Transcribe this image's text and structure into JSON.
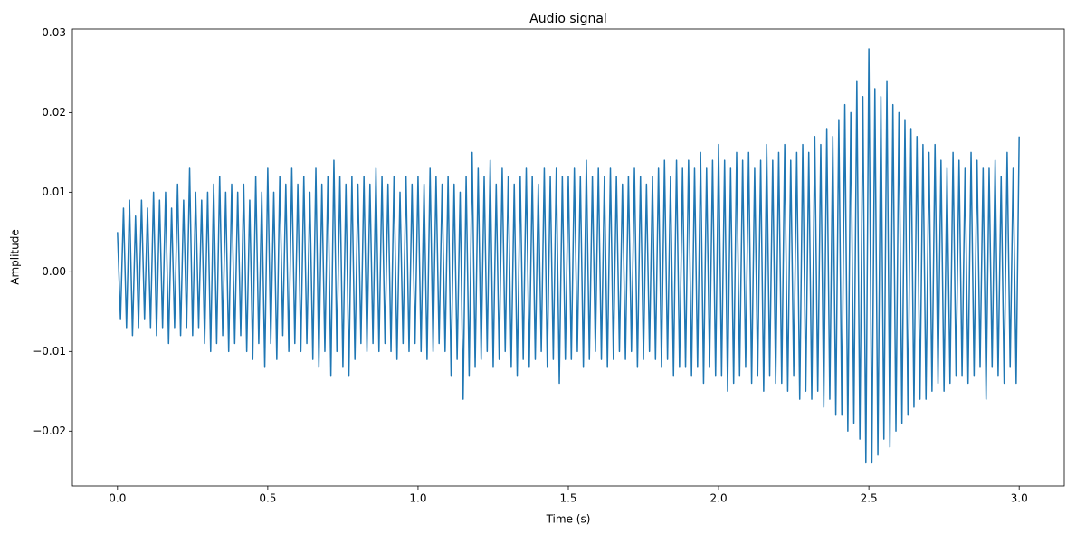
{
  "chart_data": {
    "type": "line",
    "title": "Audio signal",
    "x_label": "Time (s)",
    "y_label": "Amplitude",
    "color": "#1f77b4",
    "xlim": [
      -0.15,
      3.15
    ],
    "ylim": [
      -0.0269,
      0.0305
    ],
    "xticks": [
      {
        "value": 0,
        "label": "0.0"
      },
      0.5,
      {
        "value": 1,
        "label": "1.0"
      },
      1.5,
      {
        "value": 2,
        "label": "2.0"
      },
      2.5,
      {
        "value": 3,
        "label": "3.0"
      }
    ],
    "yticks": [
      {
        "value": -0.02,
        "label": "−0.02"
      },
      {
        "value": -0.01,
        "label": "−0.01"
      },
      {
        "value": 0,
        "label": "0.00"
      },
      0.01,
      0.02,
      0.03
    ],
    "x": [
      0,
      0.01,
      0.02,
      0.03,
      0.04,
      0.05,
      0.06,
      0.07,
      0.08,
      0.09,
      0.1,
      0.11,
      0.12,
      0.13,
      0.14,
      0.15,
      0.16,
      0.17,
      0.18,
      0.19,
      0.2,
      0.21,
      0.22,
      0.23,
      0.24,
      0.25,
      0.26,
      0.27,
      0.28,
      0.29,
      0.3,
      0.31,
      0.32,
      0.33,
      0.34,
      0.35,
      0.36,
      0.37,
      0.38,
      0.39,
      0.4,
      0.41,
      0.42,
      0.43,
      0.44,
      0.45,
      0.46,
      0.47,
      0.48,
      0.49,
      0.5,
      0.51,
      0.52,
      0.53,
      0.54,
      0.55,
      0.56,
      0.57,
      0.58,
      0.59,
      0.6,
      0.61,
      0.62,
      0.63,
      0.64,
      0.65,
      0.66,
      0.67,
      0.68,
      0.69,
      0.7,
      0.71,
      0.72,
      0.73,
      0.74,
      0.75,
      0.76,
      0.77,
      0.78,
      0.79,
      0.8,
      0.81,
      0.82,
      0.83,
      0.84,
      0.85,
      0.86,
      0.87,
      0.88,
      0.89,
      0.9,
      0.91,
      0.92,
      0.93,
      0.94,
      0.95,
      0.96,
      0.97,
      0.98,
      0.99,
      1,
      1.01,
      1.02,
      1.03,
      1.04,
      1.05,
      1.06,
      1.07,
      1.08,
      1.09,
      1.1,
      1.11,
      1.12,
      1.13,
      1.14,
      1.15,
      1.16,
      1.17,
      1.18,
      1.19,
      1.2,
      1.21,
      1.22,
      1.23,
      1.24,
      1.25,
      1.26,
      1.27,
      1.28,
      1.29,
      1.3,
      1.31,
      1.32,
      1.33,
      1.34,
      1.35,
      1.36,
      1.37,
      1.38,
      1.39,
      1.4,
      1.41,
      1.42,
      1.43,
      1.44,
      1.45,
      1.46,
      1.47,
      1.48,
      1.49,
      1.5,
      1.51,
      1.52,
      1.53,
      1.54,
      1.55,
      1.56,
      1.57,
      1.58,
      1.59,
      1.6,
      1.61,
      1.62,
      1.63,
      1.64,
      1.65,
      1.66,
      1.67,
      1.68,
      1.69,
      1.7,
      1.71,
      1.72,
      1.73,
      1.74,
      1.75,
      1.76,
      1.77,
      1.78,
      1.79,
      1.8,
      1.81,
      1.82,
      1.83,
      1.84,
      1.85,
      1.86,
      1.87,
      1.88,
      1.89,
      1.9,
      1.91,
      1.92,
      1.93,
      1.94,
      1.95,
      1.96,
      1.97,
      1.98,
      1.99,
      2,
      2.01,
      2.02,
      2.03,
      2.04,
      2.05,
      2.06,
      2.07,
      2.08,
      2.09,
      2.1,
      2.11,
      2.12,
      2.13,
      2.14,
      2.15,
      2.16,
      2.17,
      2.18,
      2.19,
      2.2,
      2.21,
      2.22,
      2.23,
      2.24,
      2.25,
      2.26,
      2.27,
      2.28,
      2.29,
      2.3,
      2.31,
      2.32,
      2.33,
      2.34,
      2.35,
      2.36,
      2.37,
      2.38,
      2.39,
      2.4,
      2.41,
      2.42,
      2.43,
      2.44,
      2.45,
      2.46,
      2.47,
      2.48,
      2.49,
      2.5,
      2.51,
      2.52,
      2.53,
      2.54,
      2.55,
      2.56,
      2.57,
      2.58,
      2.59,
      2.6,
      2.61,
      2.62,
      2.63,
      2.64,
      2.65,
      2.66,
      2.67,
      2.68,
      2.69,
      2.7,
      2.71,
      2.72,
      2.73,
      2.74,
      2.75,
      2.76,
      2.77,
      2.78,
      2.79,
      2.8,
      2.81,
      2.82,
      2.83,
      2.84,
      2.85,
      2.86,
      2.87,
      2.88,
      2.89,
      2.9,
      2.91,
      2.92,
      2.93,
      2.94,
      2.95,
      2.96,
      2.97,
      2.98,
      2.99,
      3
    ],
    "values": [
      0.005,
      -0.006,
      0.008,
      -0.007,
      0.009,
      -0.008,
      0.007,
      -0.007,
      0.009,
      -0.006,
      0.008,
      -0.007,
      0.01,
      -0.008,
      0.009,
      -0.007,
      0.01,
      -0.009,
      0.008,
      -0.007,
      0.011,
      -0.008,
      0.009,
      -0.007,
      0.013,
      -0.008,
      0.01,
      -0.007,
      0.009,
      -0.009,
      0.01,
      -0.01,
      0.011,
      -0.009,
      0.012,
      -0.008,
      0.01,
      -0.01,
      0.011,
      -0.009,
      0.01,
      -0.008,
      0.011,
      -0.01,
      0.009,
      -0.011,
      0.012,
      -0.009,
      0.01,
      -0.012,
      0.013,
      -0.009,
      0.01,
      -0.011,
      0.012,
      -0.008,
      0.011,
      -0.01,
      0.013,
      -0.009,
      0.011,
      -0.01,
      0.012,
      -0.009,
      0.01,
      -0.011,
      0.013,
      -0.012,
      0.011,
      -0.01,
      0.012,
      -0.013,
      0.014,
      -0.01,
      0.012,
      -0.012,
      0.011,
      -0.013,
      0.012,
      -0.011,
      0.011,
      -0.009,
      0.012,
      -0.01,
      0.011,
      -0.009,
      0.013,
      -0.01,
      0.012,
      -0.009,
      0.011,
      -0.01,
      0.012,
      -0.011,
      0.01,
      -0.009,
      0.012,
      -0.01,
      0.011,
      -0.009,
      0.012,
      -0.01,
      0.011,
      -0.011,
      0.013,
      -0.01,
      0.012,
      -0.009,
      0.011,
      -0.01,
      0.012,
      -0.013,
      0.011,
      -0.011,
      0.01,
      -0.016,
      0.012,
      -0.013,
      0.015,
      -0.012,
      0.013,
      -0.011,
      0.012,
      -0.01,
      0.014,
      -0.012,
      0.011,
      -0.011,
      0.013,
      -0.01,
      0.012,
      -0.012,
      0.011,
      -0.013,
      0.012,
      -0.011,
      0.013,
      -0.012,
      0.012,
      -0.011,
      0.011,
      -0.01,
      0.013,
      -0.012,
      0.012,
      -0.011,
      0.013,
      -0.014,
      0.012,
      -0.011,
      0.012,
      -0.011,
      0.013,
      -0.01,
      0.012,
      -0.012,
      0.014,
      -0.011,
      0.012,
      -0.01,
      0.013,
      -0.011,
      0.012,
      -0.012,
      0.013,
      -0.011,
      0.012,
      -0.01,
      0.011,
      -0.011,
      0.012,
      -0.01,
      0.013,
      -0.012,
      0.012,
      -0.011,
      0.011,
      -0.01,
      0.012,
      -0.011,
      0.013,
      -0.012,
      0.014,
      -0.011,
      0.012,
      -0.013,
      0.014,
      -0.012,
      0.013,
      -0.012,
      0.014,
      -0.013,
      0.013,
      -0.012,
      0.015,
      -0.014,
      0.013,
      -0.012,
      0.014,
      -0.013,
      0.016,
      -0.013,
      0.014,
      -0.015,
      0.013,
      -0.014,
      0.015,
      -0.013,
      0.014,
      -0.012,
      0.015,
      -0.014,
      0.013,
      -0.013,
      0.014,
      -0.015,
      0.016,
      -0.013,
      0.014,
      -0.014,
      0.015,
      -0.014,
      0.016,
      -0.015,
      0.014,
      -0.013,
      0.015,
      -0.016,
      0.016,
      -0.015,
      0.015,
      -0.016,
      0.017,
      -0.015,
      0.016,
      -0.017,
      0.018,
      -0.016,
      0.017,
      -0.018,
      0.019,
      -0.018,
      0.021,
      -0.02,
      0.02,
      -0.019,
      0.024,
      -0.021,
      0.022,
      -0.024,
      0.028,
      -0.024,
      0.023,
      -0.023,
      0.022,
      -0.021,
      0.024,
      -0.022,
      0.021,
      -0.02,
      0.02,
      -0.019,
      0.019,
      -0.018,
      0.018,
      -0.017,
      0.017,
      -0.016,
      0.016,
      -0.016,
      0.015,
      -0.015,
      0.016,
      -0.014,
      0.014,
      -0.015,
      0.013,
      -0.014,
      0.015,
      -0.013,
      0.014,
      -0.013,
      0.013,
      -0.014,
      0.015,
      -0.013,
      0.014,
      -0.012,
      0.013,
      -0.016,
      0.013,
      -0.012,
      0.014,
      -0.013,
      0.012,
      -0.014,
      0.015,
      -0.012,
      0.013,
      -0.014,
      0.017
    ]
  }
}
